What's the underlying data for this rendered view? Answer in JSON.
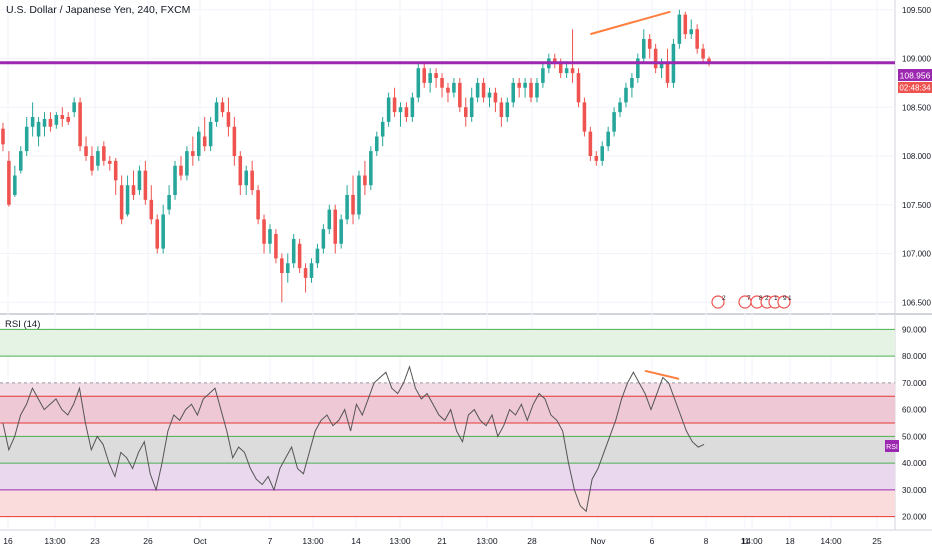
{
  "header": {
    "symbol_title": "U.S. Dollar / Japanese Yen, 240, FXCM"
  },
  "price_axis": {
    "ticks": [
      "109.500",
      "109.000",
      "108.500",
      "108.000",
      "107.500",
      "107.000",
      "106.500"
    ],
    "tick_values": [
      109.5,
      109.0,
      108.5,
      108.0,
      107.5,
      107.0,
      106.5
    ],
    "current_price_label": "108.956",
    "countdown_label": "02:48:34"
  },
  "rsi_panel": {
    "title": "RSI (14)",
    "badge": "RSI",
    "ticks": [
      "90.000",
      "80.000",
      "70.000",
      "60.000",
      "50.000",
      "40.000",
      "30.000",
      "20.000"
    ],
    "tick_values": [
      90,
      80,
      70,
      60,
      50,
      40,
      30,
      20
    ]
  },
  "time_axis": {
    "labels": [
      "16",
      "13:00",
      "23",
      "26",
      "Oct",
      "7",
      "13:00",
      "14",
      "13:00",
      "21",
      "13:00",
      "28",
      "Nov",
      "6",
      "8",
      "11",
      "14:00",
      "18",
      "14:00",
      "25"
    ]
  },
  "event_markers": {
    "m1": "2",
    "m2": "7",
    "m3": "8",
    "m4": "2",
    "m5": "1",
    "m6": "9",
    "m7": "1"
  },
  "colors": {
    "bull": "#26a69a",
    "bear": "#ef5350",
    "support_line": "#9c27b0",
    "trendline": "#ff7f3f",
    "rsi_line": "#555555"
  },
  "chart_data": {
    "type": "candlestick",
    "price_ylim": [
      106.4,
      109.6
    ],
    "rsi_ylim": [
      15,
      95
    ],
    "horizontal_level": 108.956,
    "candles": [
      [
        108.28,
        108.34,
        108.05,
        108.12
      ],
      [
        107.95,
        108.05,
        107.48,
        107.5
      ],
      [
        107.6,
        107.9,
        107.58,
        107.8
      ],
      [
        107.85,
        108.1,
        107.82,
        108.05
      ],
      [
        108.05,
        108.4,
        108.0,
        108.3
      ],
      [
        108.3,
        108.55,
        108.2,
        108.4
      ],
      [
        108.2,
        108.4,
        108.1,
        108.35
      ],
      [
        108.3,
        108.45,
        108.2,
        108.38
      ],
      [
        108.38,
        108.45,
        108.25,
        108.3
      ],
      [
        108.32,
        108.45,
        108.28,
        108.42
      ],
      [
        108.42,
        108.5,
        108.3,
        108.38
      ],
      [
        108.4,
        108.45,
        108.32,
        108.35
      ],
      [
        108.45,
        108.6,
        108.4,
        108.55
      ],
      [
        108.55,
        108.6,
        108.05,
        108.1
      ],
      [
        108.1,
        108.2,
        107.95,
        108.0
      ],
      [
        108.0,
        108.1,
        107.8,
        107.85
      ],
      [
        107.9,
        108.1,
        107.85,
        108.05
      ],
      [
        108.1,
        108.15,
        107.9,
        107.95
      ],
      [
        107.95,
        108.0,
        107.85,
        107.92
      ],
      [
        107.95,
        107.98,
        107.6,
        107.75
      ],
      [
        107.7,
        107.8,
        107.3,
        107.35
      ],
      [
        107.4,
        107.8,
        107.38,
        107.7
      ],
      [
        107.7,
        107.85,
        107.55,
        107.6
      ],
      [
        107.65,
        107.9,
        107.6,
        107.85
      ],
      [
        107.85,
        107.95,
        107.5,
        107.55
      ],
      [
        107.55,
        107.7,
        107.3,
        107.35
      ],
      [
        107.35,
        107.4,
        107.0,
        107.05
      ],
      [
        107.05,
        107.5,
        107.0,
        107.4
      ],
      [
        107.45,
        107.7,
        107.4,
        107.6
      ],
      [
        107.6,
        107.95,
        107.55,
        107.9
      ],
      [
        107.9,
        108.0,
        107.75,
        107.8
      ],
      [
        107.8,
        108.1,
        107.75,
        108.05
      ],
      [
        108.05,
        108.2,
        107.9,
        108.0
      ],
      [
        108.0,
        108.3,
        107.95,
        108.25
      ],
      [
        108.2,
        108.4,
        108.05,
        108.1
      ],
      [
        108.1,
        108.4,
        108.05,
        108.35
      ],
      [
        108.35,
        108.6,
        108.3,
        108.55
      ],
      [
        108.55,
        108.6,
        108.4,
        108.45
      ],
      [
        108.45,
        108.6,
        108.2,
        108.3
      ],
      [
        108.3,
        108.4,
        107.9,
        108.0
      ],
      [
        108.0,
        108.05,
        107.6,
        107.7
      ],
      [
        107.7,
        107.9,
        107.6,
        107.85
      ],
      [
        107.85,
        107.95,
        107.6,
        107.65
      ],
      [
        107.65,
        107.7,
        107.3,
        107.35
      ],
      [
        107.35,
        107.4,
        107.0,
        107.1
      ],
      [
        107.1,
        107.3,
        107.0,
        107.25
      ],
      [
        107.2,
        107.25,
        106.9,
        106.95
      ],
      [
        106.95,
        107.0,
        106.5,
        106.8
      ],
      [
        106.8,
        107.0,
        106.7,
        106.9
      ],
      [
        106.9,
        107.2,
        106.85,
        107.15
      ],
      [
        107.1,
        107.15,
        106.8,
        106.85
      ],
      [
        106.85,
        106.9,
        106.6,
        106.75
      ],
      [
        106.75,
        106.95,
        106.7,
        106.9
      ],
      [
        106.9,
        107.1,
        106.85,
        107.05
      ],
      [
        107.05,
        107.3,
        107.0,
        107.25
      ],
      [
        107.25,
        107.5,
        107.2,
        107.45
      ],
      [
        107.45,
        107.5,
        107.0,
        107.1
      ],
      [
        107.1,
        107.4,
        107.05,
        107.35
      ],
      [
        107.35,
        107.7,
        107.3,
        107.6
      ],
      [
        107.6,
        107.8,
        107.3,
        107.4
      ],
      [
        107.4,
        107.85,
        107.35,
        107.8
      ],
      [
        107.8,
        107.95,
        107.6,
        107.7
      ],
      [
        107.7,
        108.1,
        107.65,
        108.05
      ],
      [
        108.05,
        108.25,
        108.0,
        108.2
      ],
      [
        108.2,
        108.4,
        108.1,
        108.35
      ],
      [
        108.35,
        108.65,
        108.3,
        108.6
      ],
      [
        108.6,
        108.7,
        108.4,
        108.45
      ],
      [
        108.45,
        108.55,
        108.3,
        108.5
      ],
      [
        108.5,
        108.55,
        108.35,
        108.4
      ],
      [
        108.4,
        108.65,
        108.35,
        108.6
      ],
      [
        108.6,
        108.95,
        108.55,
        108.9
      ],
      [
        108.9,
        108.95,
        108.7,
        108.75
      ],
      [
        108.75,
        108.9,
        108.65,
        108.85
      ],
      [
        108.85,
        108.9,
        108.7,
        108.8
      ],
      [
        108.8,
        108.85,
        108.6,
        108.7
      ],
      [
        108.7,
        108.75,
        108.55,
        108.65
      ],
      [
        108.65,
        108.8,
        108.6,
        108.75
      ],
      [
        108.75,
        108.8,
        108.45,
        108.5
      ],
      [
        108.5,
        108.6,
        108.3,
        108.4
      ],
      [
        108.4,
        108.7,
        108.35,
        108.6
      ],
      [
        108.6,
        108.8,
        108.55,
        108.75
      ],
      [
        108.75,
        108.8,
        108.55,
        108.6
      ],
      [
        108.6,
        108.7,
        108.5,
        108.65
      ],
      [
        108.65,
        108.7,
        108.45,
        108.55
      ],
      [
        108.55,
        108.6,
        108.3,
        108.4
      ],
      [
        108.4,
        108.6,
        108.35,
        108.55
      ],
      [
        108.55,
        108.8,
        108.5,
        108.75
      ],
      [
        108.75,
        108.8,
        108.6,
        108.7
      ],
      [
        108.7,
        108.8,
        108.6,
        108.75
      ],
      [
        108.75,
        108.8,
        108.55,
        108.6
      ],
      [
        108.6,
        108.8,
        108.55,
        108.75
      ],
      [
        108.75,
        108.95,
        108.7,
        108.9
      ],
      [
        108.9,
        109.05,
        108.85,
        109.0
      ],
      [
        109.0,
        109.05,
        108.9,
        108.95
      ],
      [
        108.95,
        109.0,
        108.8,
        108.85
      ],
      [
        108.85,
        108.95,
        108.8,
        108.9
      ],
      [
        108.9,
        109.3,
        108.75,
        108.85
      ],
      [
        108.85,
        108.9,
        108.5,
        108.55
      ],
      [
        108.55,
        108.6,
        108.2,
        108.25
      ],
      [
        108.25,
        108.3,
        107.95,
        108.0
      ],
      [
        108.0,
        108.05,
        107.9,
        107.95
      ],
      [
        107.95,
        108.15,
        107.9,
        108.1
      ],
      [
        108.1,
        108.3,
        108.05,
        108.25
      ],
      [
        108.25,
        108.5,
        108.2,
        108.45
      ],
      [
        108.45,
        108.6,
        108.4,
        108.55
      ],
      [
        108.55,
        108.75,
        108.5,
        108.7
      ],
      [
        108.7,
        108.85,
        108.6,
        108.8
      ],
      [
        108.8,
        109.05,
        108.75,
        109.0
      ],
      [
        109.0,
        109.3,
        108.95,
        109.2
      ],
      [
        109.2,
        109.25,
        109.0,
        109.1
      ],
      [
        109.1,
        109.15,
        108.85,
        108.9
      ],
      [
        108.9,
        109.0,
        108.8,
        108.95
      ],
      [
        108.95,
        109.1,
        108.7,
        108.75
      ],
      [
        108.75,
        109.2,
        108.7,
        109.15
      ],
      [
        109.15,
        109.5,
        109.1,
        109.45
      ],
      [
        109.45,
        109.48,
        109.2,
        109.25
      ],
      [
        109.25,
        109.4,
        109.2,
        109.3
      ],
      [
        109.3,
        109.35,
        109.05,
        109.1
      ],
      [
        109.1,
        109.15,
        108.95,
        109.0
      ],
      [
        109.0,
        109.02,
        108.92,
        108.956
      ]
    ],
    "rsi_values": [
      55,
      45,
      50,
      58,
      62,
      68,
      64,
      60,
      62,
      64,
      60,
      58,
      62,
      68,
      55,
      45,
      50,
      47,
      40,
      35,
      44,
      42,
      38,
      44,
      48,
      36,
      30,
      40,
      52,
      58,
      56,
      60,
      62,
      58,
      64,
      66,
      68,
      60,
      52,
      42,
      46,
      44,
      38,
      34,
      32,
      35,
      30,
      38,
      42,
      46,
      38,
      36,
      44,
      52,
      56,
      58,
      54,
      56,
      60,
      52,
      62,
      58,
      64,
      70,
      72,
      74,
      68,
      66,
      70,
      76,
      68,
      64,
      66,
      62,
      58,
      56,
      60,
      52,
      48,
      58,
      60,
      56,
      54,
      58,
      50,
      54,
      60,
      58,
      62,
      56,
      62,
      66,
      64,
      58,
      56,
      52,
      40,
      30,
      24,
      22,
      34,
      38,
      44,
      50,
      56,
      64,
      70,
      74,
      70,
      66,
      60,
      66,
      72,
      70,
      64,
      58,
      52,
      48,
      46,
      47
    ],
    "rsi_levels": {
      "upper_band": [
        80,
        90
      ],
      "overbought": 70,
      "mid_upper": [
        55,
        65
      ],
      "mid": 50,
      "lower": 40,
      "oversold": 30,
      "bottom": 20
    }
  }
}
